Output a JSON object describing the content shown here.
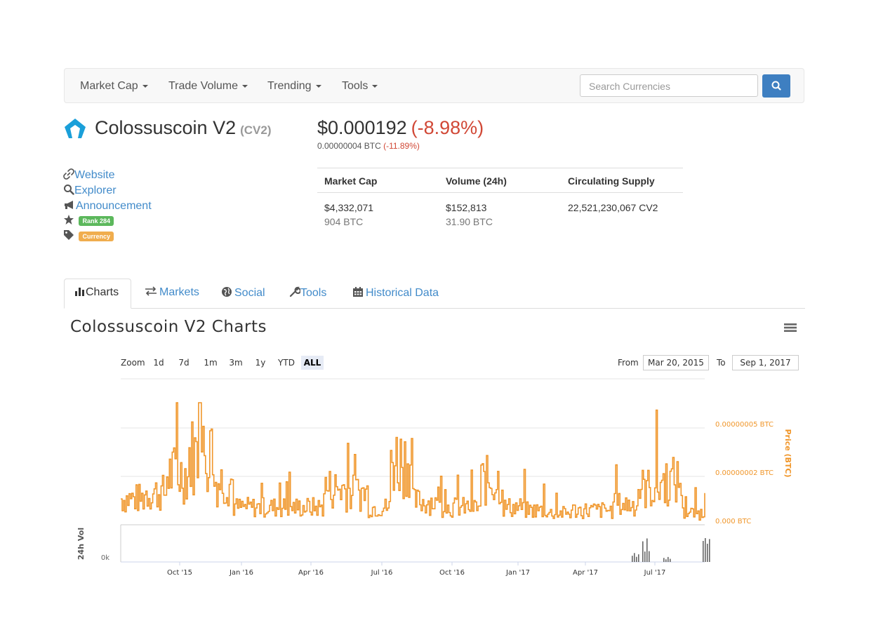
{
  "nav": {
    "items": [
      "Market Cap",
      "Trade Volume",
      "Trending",
      "Tools"
    ],
    "search_placeholder": "Search Currencies"
  },
  "coin": {
    "name": "Colossuscoin V2",
    "symbol": "(CV2)",
    "price_usd": "$0.000192",
    "price_change": "(-8.98%)",
    "price_btc": "0.00000004 BTC",
    "btc_change": "(-11.89%)"
  },
  "links": {
    "website": "Website",
    "explorer": "Explorer",
    "announcement": "Announcement",
    "rank": "Rank 284",
    "type": "Currency"
  },
  "stats": {
    "headers": [
      "Market Cap",
      "Volume (24h)",
      "Circulating Supply"
    ],
    "market_cap_usd": "$4,332,071",
    "market_cap_btc": "904 BTC",
    "volume_usd": "$152,813",
    "volume_btc": "31.90 BTC",
    "supply": "22,521,230,067 CV2"
  },
  "tabs": [
    "Charts",
    "Markets",
    "Social",
    "Tools",
    "Historical Data"
  ],
  "charts_title": "Colossuscoin V2 Charts",
  "controls": {
    "zoom_label": "Zoom",
    "zoom_options": [
      "1d",
      "7d",
      "1m",
      "3m",
      "1y",
      "YTD",
      "ALL"
    ],
    "from_label": "From",
    "from_date": "Mar 20, 2015",
    "to_label": "To",
    "to_date": "Sep 1, 2017"
  },
  "colors": {
    "price_line": "#f0962a",
    "volume_bars": "#666666",
    "negative": "#d14836",
    "link": "#428bca",
    "rank_badge": "#5cb85c",
    "currency_badge": "#f0ad4e",
    "search_button": "#3e7fc1"
  },
  "chart_data": {
    "type": "line",
    "ylabel": "Price (BTC)",
    "y_tick_labels": [
      "0.00000005 BTC",
      "0.00000002 BTC",
      "0.000 BTC"
    ],
    "volume_ylabel": "24h Vol",
    "volume_tick_label": "0k",
    "x_tick_labels": [
      "Oct '15",
      "Jan '16",
      "Apr '16",
      "Jul '16",
      "Oct '16",
      "Jan '17",
      "Apr '17",
      "Jul '17"
    ],
    "grid": true,
    "series": [
      {
        "values_note_free": true,
        "x": [
          "2015-07",
          "2015-08",
          "2015-09",
          "2015-10",
          "2015-11",
          "2015-12",
          "2016-01",
          "2016-02",
          "2016-03",
          "2016-04",
          "2016-05",
          "2016-06",
          "2016-07",
          "2016-08",
          "2016-09",
          "2016-10",
          "2016-11",
          "2016-12",
          "2017-01",
          "2017-02",
          "2017-03",
          "2017-04",
          "2017-05",
          "2017-06",
          "2017-07",
          "2017-08",
          "2017-09"
        ],
        "values": [
          1.8e-08,
          2.2e-08,
          3.5e-08,
          4.8e-08,
          3e-08,
          1.2e-08,
          1.2e-08,
          1.2e-08,
          1.2e-08,
          2.5e-08,
          2.2e-08,
          1.2e-08,
          4.5e-08,
          1.6e-08,
          1.2e-08,
          1.2e-08,
          3e-08,
          1.2e-08,
          1e-08,
          8e-09,
          1e-08,
          1e-08,
          1.4e-08,
          2.5e-08,
          3e-08,
          8e-09,
          4.5e-08
        ]
      }
    ],
    "volume": {
      "x": [
        "2017-06",
        "2017-07",
        "2017-08",
        "2017-09"
      ],
      "values": [
        0.5,
        1.0,
        0.2,
        1.0
      ]
    }
  }
}
